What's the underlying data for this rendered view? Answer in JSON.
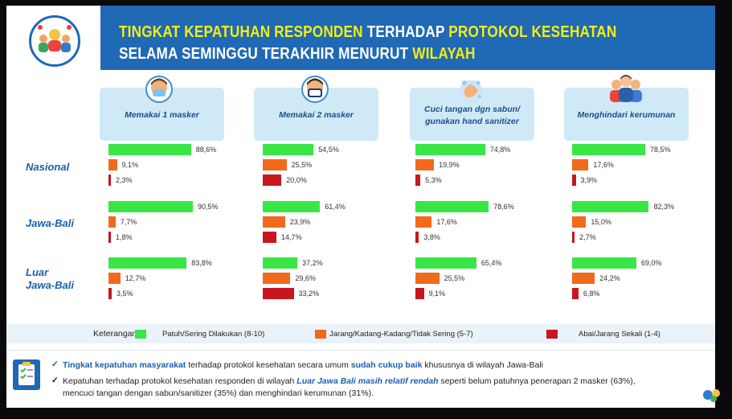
{
  "title": {
    "line1_part1": "TINGKAT KEPATUHAN RESPONDEN",
    "line1_part2": " TERHADAP ",
    "line1_part3": "PROTOKOL KESEHATAN",
    "line2_part1": "SELAMA SEMINGGU TERAKHIR MENURUT ",
    "line2_part2": "WILAYAH"
  },
  "chart_data": {
    "type": "bar",
    "orientation": "horizontal",
    "xlim": [
      0,
      100
    ],
    "unit": "%",
    "categories": [
      "Memakai 1 masker",
      "Memakai 2 masker",
      "Cuci tangan dgn sabun/ gunakan hand sanitizer",
      "Menghindari kerumunan"
    ],
    "regions": [
      "Nasional",
      "Jawa-Bali",
      "Luar Jawa-Bali"
    ],
    "series": [
      {
        "name": "Patuh/Sering Dilakukan (8-10)",
        "color": "#39e646",
        "values": [
          [
            88.6,
            54.5,
            74.8,
            78.5
          ],
          [
            90.5,
            61.4,
            78.6,
            82.3
          ],
          [
            83.8,
            37.2,
            65.4,
            69.0
          ]
        ],
        "labels": [
          [
            "88,6%",
            "54,5%",
            "74,8%",
            "78,5%"
          ],
          [
            "90,5%",
            "61,4%",
            "78,6%",
            "82,3%"
          ],
          [
            "83,8%",
            "37,2%",
            "65,4%",
            "69,0%"
          ]
        ]
      },
      {
        "name": "Jarang/Kadang-Kadang/Tidak Sering (5-7)",
        "color": "#f06a1c",
        "values": [
          [
            9.1,
            25.5,
            19.9,
            17.6
          ],
          [
            7.7,
            23.9,
            17.6,
            15.0
          ],
          [
            12.7,
            29.6,
            25.5,
            24.2
          ]
        ],
        "labels": [
          [
            "9,1%",
            "25,5%",
            "19,9%",
            "17,6%"
          ],
          [
            "7,7%",
            "23,9%",
            "17,6%",
            "15,0%"
          ],
          [
            "12,7%",
            "29,6%",
            "25,5%",
            "24,2%"
          ]
        ]
      },
      {
        "name": "Abai/Jarang Sekali (1-4)",
        "color": "#c8161e",
        "values": [
          [
            2.3,
            20.0,
            5.3,
            3.9
          ],
          [
            1.8,
            14.7,
            3.8,
            2.7
          ],
          [
            3.5,
            33.2,
            9.1,
            6.8
          ]
        ],
        "labels": [
          [
            "2,3%",
            "20,0%",
            "5,3%",
            "3,9%"
          ],
          [
            "1,8%",
            "14,7%",
            "3,8%",
            "2,7%"
          ],
          [
            "3,5%",
            "33,2%",
            "9,1%",
            "6,8%"
          ]
        ]
      }
    ]
  },
  "cards": [
    {
      "label": "Memakai 1 masker",
      "icon": "face-mask-icon"
    },
    {
      "label": "Memakai 2 masker",
      "icon": "double-mask-icon"
    },
    {
      "label_line1": "Cuci tangan dgn sabun/",
      "label_line2": "gunakan hand sanitizer",
      "icon": "hand-wash-icon"
    },
    {
      "label": "Menghindari kerumunan",
      "icon": "crowd-icon"
    }
  ],
  "region_labels": {
    "r1": "Nasional",
    "r2": "Jawa-Bali",
    "r3_line1": "Luar",
    "r3_line2": "Jawa-Bali"
  },
  "legend": {
    "title": "Keterangan:",
    "items": [
      "Patuh/Sering Dilakukan (8-10)",
      "Jarang/Kadang-Kadang/Tidak Sering (5-7)",
      "Abai/Jarang Sekali  (1-4)"
    ]
  },
  "notes": {
    "n1_a": "Tingkat kepatuhan masyarakat",
    "n1_b": " terhadap protokol kesehatan secara umum ",
    "n1_c": "sudah cukup baik",
    "n1_d": " khususnya di wilayah Jawa-Bali",
    "n2_a": "Kepatuhan terhadap protokol kesehatan responden di wilayah ",
    "n2_b": "Luar Jawa Bali masih relatif rendah",
    "n2_c": " seperti belum patuhnya penerapan 2 masker (63%),",
    "n2_line2": "mencuci tangan dengan sabun/sanitizer (35%) dan menghindari kerumunan (31%).",
    "check": "✓"
  },
  "colors": {
    "header": "#1f69b5",
    "title_highlight": "#f3ec19",
    "card": "#cfeaf6",
    "region_text": "#1a5fb0"
  }
}
